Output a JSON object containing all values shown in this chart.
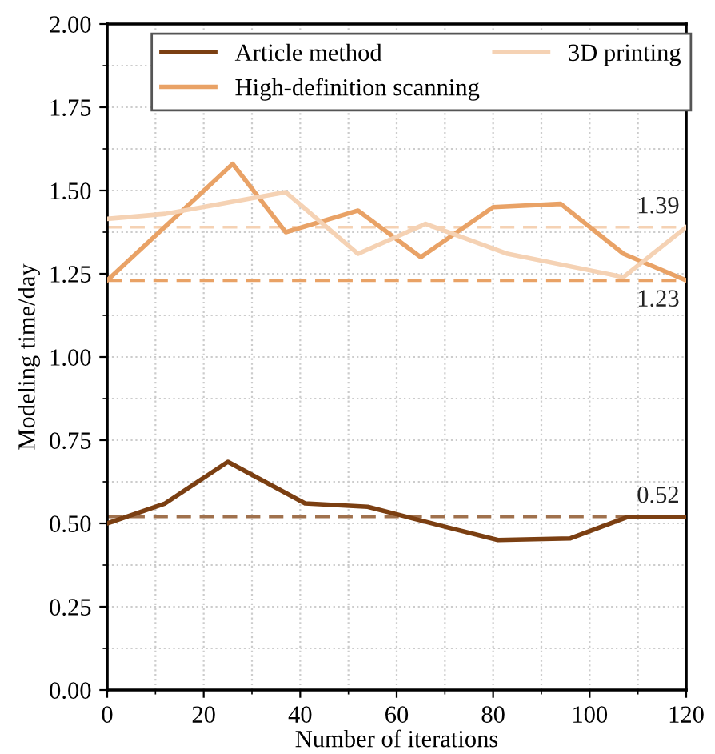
{
  "chart_data": {
    "type": "line",
    "xlabel": "Number of iterations",
    "ylabel": "Modeling time/day",
    "xlim": [
      0,
      120
    ],
    "xticks": [
      0,
      20,
      40,
      60,
      80,
      100,
      120
    ],
    "ylim": [
      0,
      2
    ],
    "yticks": [
      {
        "value": 0,
        "label": "0.00"
      },
      {
        "value": 0.25,
        "label": "0.25"
      },
      {
        "value": 0.5,
        "label": "0.50"
      },
      {
        "value": 0.75,
        "label": "0.75"
      },
      {
        "value": 1,
        "label": "1.00"
      },
      {
        "value": 1.25,
        "label": "1.25"
      },
      {
        "value": 1.5,
        "label": "1.50"
      },
      {
        "value": 1.75,
        "label": "1.75"
      },
      {
        "value": 2,
        "label": "2.00"
      }
    ],
    "grid": true,
    "legend": "top left",
    "marker": "none",
    "line_style": "solid",
    "series": [
      {
        "name": "Article method",
        "color": "#7b3f12",
        "x": [
          0,
          12,
          25,
          41,
          54,
          62,
          70,
          81,
          96,
          108,
          120
        ],
        "values": [
          0.5,
          0.56,
          0.685,
          0.56,
          0.55,
          0.52,
          0.49,
          0.45,
          0.455,
          0.52,
          0.52
        ]
      },
      {
        "name": "High-definition scanning",
        "color": "#e9a266",
        "x": [
          0,
          26,
          37,
          52,
          65,
          80,
          94,
          107,
          120
        ],
        "values": [
          1.23,
          1.58,
          1.375,
          1.44,
          1.3,
          1.45,
          1.46,
          1.31,
          1.23
        ]
      },
      {
        "name": "3D printing",
        "color": "#f5d2b4",
        "x": [
          0,
          12,
          37,
          52,
          66,
          83,
          107,
          120
        ],
        "values": [
          1.415,
          1.43,
          1.495,
          1.31,
          1.4,
          1.31,
          1.24,
          1.39
        ]
      }
    ],
    "ref_lines": [
      {
        "axis": "y",
        "value": 1.39,
        "label": "1.39",
        "color": "#f5d2b4",
        "line_style": "dashed"
      },
      {
        "axis": "y",
        "value": 1.23,
        "label": "1.23",
        "color": "#e9a266",
        "line_style": "dashed"
      },
      {
        "axis": "y",
        "value": 0.52,
        "label": "0.52",
        "color": "#a0714d",
        "line_style": "dashed"
      }
    ]
  }
}
